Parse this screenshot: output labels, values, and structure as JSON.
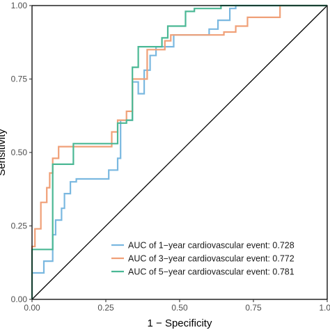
{
  "chart_data": {
    "type": "line",
    "title": "",
    "xlabel": "1 − Specificity",
    "ylabel": "Sensitivity",
    "xlim": [
      0,
      1
    ],
    "ylim": [
      0,
      1
    ],
    "x_ticks": [
      "0.00",
      "0.25",
      "0.50",
      "0.75",
      "1.00"
    ],
    "y_ticks": [
      "0.00",
      "0.25",
      "0.50",
      "0.75",
      "1.00"
    ],
    "grid": false,
    "legend_position": "bottom-right",
    "reference_line": {
      "from": [
        0,
        0
      ],
      "to": [
        1,
        1
      ],
      "color": "#000000"
    },
    "series": [
      {
        "name": "AUC of 1−year cardiovascular event: 0.728",
        "color": "#7ab8e0",
        "points": [
          [
            0,
            0
          ],
          [
            0,
            0.09
          ],
          [
            0.04,
            0.09
          ],
          [
            0.04,
            0.13
          ],
          [
            0.07,
            0.13
          ],
          [
            0.07,
            0.22
          ],
          [
            0.08,
            0.22
          ],
          [
            0.08,
            0.27
          ],
          [
            0.1,
            0.27
          ],
          [
            0.1,
            0.31
          ],
          [
            0.11,
            0.31
          ],
          [
            0.11,
            0.36
          ],
          [
            0.13,
            0.36
          ],
          [
            0.13,
            0.4
          ],
          [
            0.15,
            0.4
          ],
          [
            0.15,
            0.41
          ],
          [
            0.26,
            0.41
          ],
          [
            0.26,
            0.44
          ],
          [
            0.29,
            0.44
          ],
          [
            0.29,
            0.48
          ],
          [
            0.3,
            0.48
          ],
          [
            0.3,
            0.61
          ],
          [
            0.34,
            0.61
          ],
          [
            0.34,
            0.74
          ],
          [
            0.36,
            0.74
          ],
          [
            0.36,
            0.7
          ],
          [
            0.38,
            0.7
          ],
          [
            0.38,
            0.78
          ],
          [
            0.4,
            0.78
          ],
          [
            0.4,
            0.83
          ],
          [
            0.42,
            0.83
          ],
          [
            0.42,
            0.86
          ],
          [
            0.48,
            0.86
          ],
          [
            0.48,
            0.9
          ],
          [
            0.6,
            0.9
          ],
          [
            0.6,
            0.92
          ],
          [
            0.63,
            0.92
          ],
          [
            0.63,
            0.95
          ],
          [
            0.67,
            0.95
          ],
          [
            0.67,
            0.99
          ],
          [
            0.69,
            0.99
          ],
          [
            0.69,
            1.0
          ],
          [
            1.0,
            1.0
          ]
        ]
      },
      {
        "name": "AUC of 3−year cardiovascular event: 0.772",
        "color": "#f0a078",
        "points": [
          [
            0,
            0
          ],
          [
            0,
            0.18
          ],
          [
            0.01,
            0.18
          ],
          [
            0.01,
            0.24
          ],
          [
            0.03,
            0.24
          ],
          [
            0.03,
            0.33
          ],
          [
            0.05,
            0.33
          ],
          [
            0.05,
            0.38
          ],
          [
            0.06,
            0.38
          ],
          [
            0.06,
            0.43
          ],
          [
            0.07,
            0.43
          ],
          [
            0.07,
            0.48
          ],
          [
            0.09,
            0.48
          ],
          [
            0.09,
            0.52
          ],
          [
            0.27,
            0.52
          ],
          [
            0.27,
            0.57
          ],
          [
            0.29,
            0.57
          ],
          [
            0.29,
            0.61
          ],
          [
            0.32,
            0.61
          ],
          [
            0.32,
            0.64
          ],
          [
            0.34,
            0.64
          ],
          [
            0.34,
            0.75
          ],
          [
            0.39,
            0.75
          ],
          [
            0.39,
            0.85
          ],
          [
            0.45,
            0.85
          ],
          [
            0.45,
            0.88
          ],
          [
            0.47,
            0.88
          ],
          [
            0.47,
            0.9
          ],
          [
            0.65,
            0.9
          ],
          [
            0.65,
            0.91
          ],
          [
            0.69,
            0.91
          ],
          [
            0.69,
            0.93
          ],
          [
            0.73,
            0.93
          ],
          [
            0.73,
            0.96
          ],
          [
            0.84,
            0.96
          ],
          [
            0.84,
            1.0
          ],
          [
            1.0,
            1.0
          ]
        ]
      },
      {
        "name": "AUC of 5−year cardiovascular event: 0.781",
        "color": "#4bb895",
        "points": [
          [
            0,
            0
          ],
          [
            0,
            0.17
          ],
          [
            0.07,
            0.17
          ],
          [
            0.07,
            0.46
          ],
          [
            0.14,
            0.46
          ],
          [
            0.14,
            0.53
          ],
          [
            0.29,
            0.53
          ],
          [
            0.29,
            0.6
          ],
          [
            0.32,
            0.6
          ],
          [
            0.32,
            0.61
          ],
          [
            0.34,
            0.61
          ],
          [
            0.34,
            0.79
          ],
          [
            0.36,
            0.79
          ],
          [
            0.36,
            0.86
          ],
          [
            0.44,
            0.86
          ],
          [
            0.44,
            0.89
          ],
          [
            0.46,
            0.89
          ],
          [
            0.46,
            0.93
          ],
          [
            0.52,
            0.93
          ],
          [
            0.52,
            0.98
          ],
          [
            0.55,
            0.98
          ],
          [
            0.55,
            0.99
          ],
          [
            0.64,
            0.99
          ],
          [
            0.64,
            1.0
          ],
          [
            1.0,
            1.0
          ]
        ]
      }
    ]
  }
}
